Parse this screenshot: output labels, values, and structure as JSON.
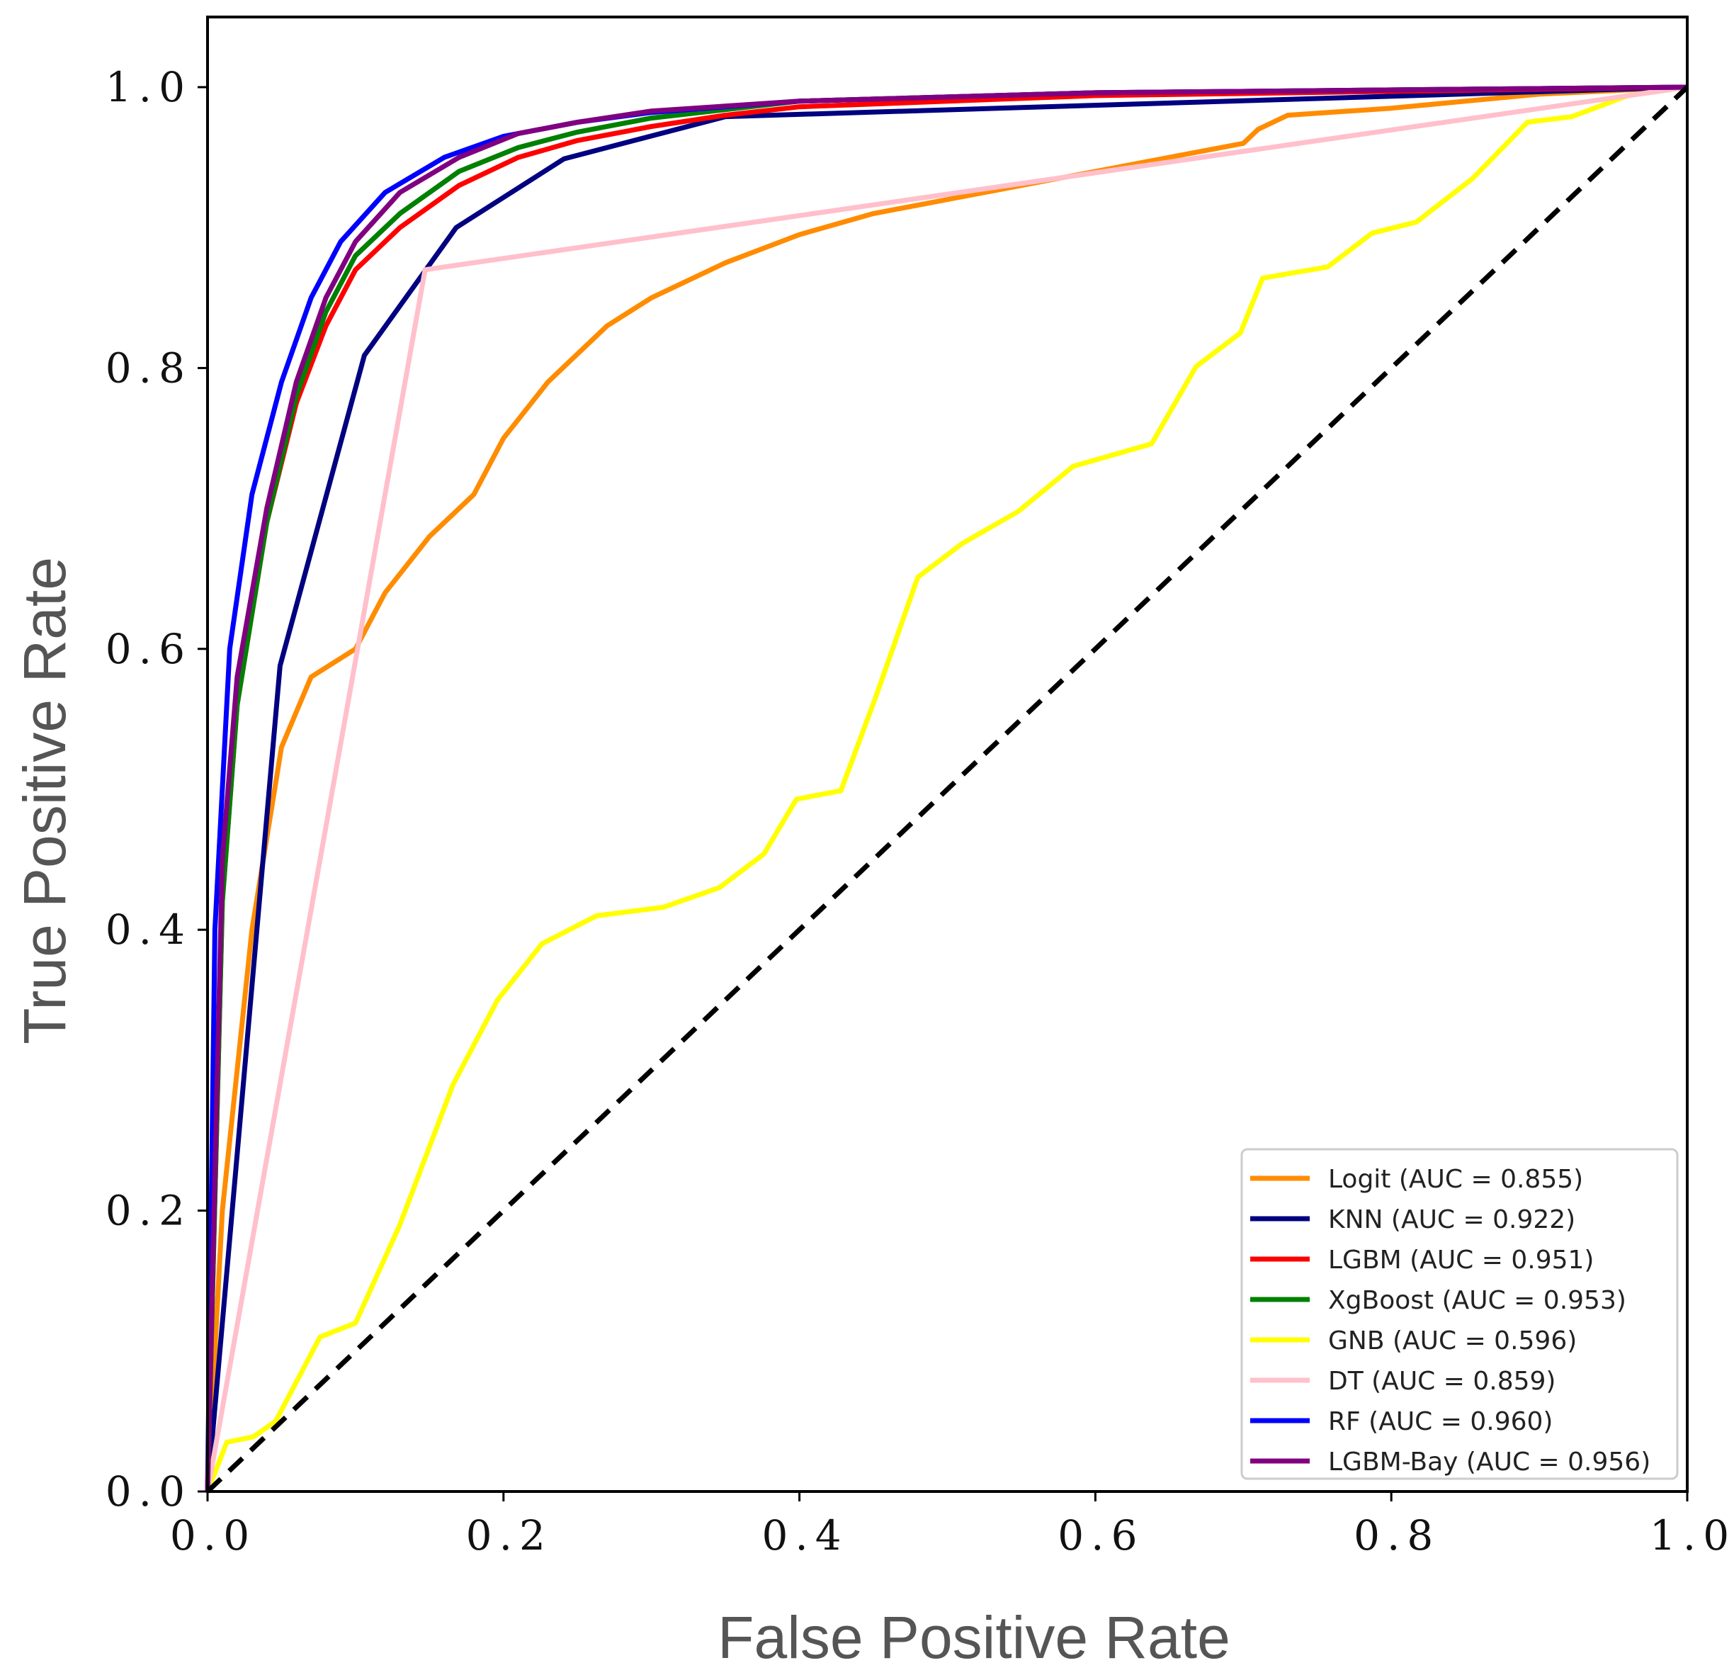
{
  "chart_data": {
    "type": "line",
    "title": "",
    "xlabel": "False Positive Rate",
    "ylabel": "True Positive Rate",
    "xlim": [
      0,
      1
    ],
    "ylim": [
      0,
      1.05
    ],
    "xticks": [
      "0.0",
      "0.2",
      "0.4",
      "0.6",
      "0.8",
      "1.0"
    ],
    "yticks": [
      "0.0",
      "0.2",
      "0.4",
      "0.6",
      "0.8",
      "1.0"
    ],
    "xtick_values": [
      0,
      0.2,
      0.4,
      0.6,
      0.8,
      1.0
    ],
    "ytick_values": [
      0,
      0.2,
      0.4,
      0.6,
      0.8,
      1.0
    ],
    "grid": false,
    "legend_position": "lower-right",
    "diagonal": {
      "color": "#000000",
      "style": "dashed",
      "x": [
        0,
        1
      ],
      "y": [
        0,
        1
      ]
    },
    "series": [
      {
        "name": "Logit (AUC = 0.855)",
        "color": "#ff8c00",
        "x": [
          0,
          0.01,
          0.03,
          0.05,
          0.07,
          0.1,
          0.12,
          0.15,
          0.18,
          0.2,
          0.23,
          0.27,
          0.3,
          0.35,
          0.4,
          0.45,
          0.5,
          0.55,
          0.6,
          0.65,
          0.7,
          0.71,
          0.73,
          0.8,
          0.9,
          1
        ],
        "y": [
          0,
          0.2,
          0.4,
          0.53,
          0.58,
          0.6,
          0.64,
          0.68,
          0.71,
          0.75,
          0.79,
          0.83,
          0.85,
          0.875,
          0.895,
          0.91,
          0.92,
          0.93,
          0.94,
          0.95,
          0.96,
          0.97,
          0.98,
          0.985,
          0.995,
          1
        ]
      },
      {
        "name": "KNN (AUC = 0.922)",
        "color": "#000080",
        "x": [
          0,
          0.049,
          0.106,
          0.168,
          0.241,
          0.35,
          1
        ],
        "y": [
          0,
          0.588,
          0.809,
          0.9,
          0.949,
          0.979,
          1
        ]
      },
      {
        "name": "LGBM (AUC = 0.951)",
        "color": "#ff0000",
        "x": [
          0,
          0.01,
          0.02,
          0.04,
          0.06,
          0.08,
          0.1,
          0.13,
          0.17,
          0.21,
          0.25,
          0.3,
          0.35,
          0.4,
          0.6,
          1
        ],
        "y": [
          0,
          0.42,
          0.56,
          0.69,
          0.775,
          0.83,
          0.87,
          0.9,
          0.93,
          0.95,
          0.962,
          0.972,
          0.98,
          0.986,
          0.994,
          1
        ]
      },
      {
        "name": "XgBoost (AUC = 0.953)",
        "color": "#008000",
        "x": [
          0,
          0.01,
          0.02,
          0.04,
          0.06,
          0.08,
          0.1,
          0.13,
          0.17,
          0.21,
          0.25,
          0.3,
          0.4,
          0.6,
          1
        ],
        "y": [
          0,
          0.42,
          0.56,
          0.69,
          0.78,
          0.84,
          0.88,
          0.91,
          0.94,
          0.957,
          0.968,
          0.978,
          0.99,
          0.996,
          1
        ]
      },
      {
        "name": "GNB (AUC = 0.596)",
        "color": "#ffff00",
        "x": [
          0,
          0.013,
          0.031,
          0.046,
          0.076,
          0.1,
          0.13,
          0.166,
          0.196,
          0.226,
          0.263,
          0.308,
          0.346,
          0.376,
          0.398,
          0.428,
          0.451,
          0.48,
          0.51,
          0.548,
          0.585,
          0.638,
          0.668,
          0.698,
          0.713,
          0.757,
          0.787,
          0.817,
          0.855,
          0.892,
          0.922,
          0.96,
          1
        ],
        "y": [
          0,
          0.035,
          0.039,
          0.05,
          0.11,
          0.12,
          0.19,
          0.29,
          0.35,
          0.39,
          0.41,
          0.416,
          0.43,
          0.454,
          0.493,
          0.499,
          0.564,
          0.651,
          0.675,
          0.698,
          0.73,
          0.746,
          0.801,
          0.825,
          0.864,
          0.872,
          0.896,
          0.904,
          0.935,
          0.975,
          0.979,
          0.994,
          1
        ]
      },
      {
        "name": "DT (AUC = 0.859)",
        "color": "#ffc0cb",
        "x": [
          0,
          0.147,
          1
        ],
        "y": [
          0,
          0.87,
          1
        ]
      },
      {
        "name": "RF (AUC = 0.960)",
        "color": "#0000ff",
        "x": [
          0,
          0.005,
          0.015,
          0.03,
          0.05,
          0.07,
          0.09,
          0.12,
          0.16,
          0.2,
          0.25,
          0.3,
          0.4,
          0.6,
          1
        ],
        "y": [
          0,
          0.4,
          0.6,
          0.71,
          0.79,
          0.85,
          0.89,
          0.925,
          0.95,
          0.965,
          0.975,
          0.982,
          0.99,
          0.996,
          1
        ]
      },
      {
        "name": "LGBM-Bay (AUC = 0.956)",
        "color": "#800080",
        "x": [
          0,
          0.01,
          0.02,
          0.04,
          0.06,
          0.08,
          0.1,
          0.13,
          0.17,
          0.21,
          0.25,
          0.3,
          0.4,
          0.6,
          1
        ],
        "y": [
          0,
          0.45,
          0.58,
          0.7,
          0.79,
          0.85,
          0.89,
          0.925,
          0.95,
          0.967,
          0.975,
          0.983,
          0.99,
          0.996,
          1
        ]
      }
    ]
  }
}
